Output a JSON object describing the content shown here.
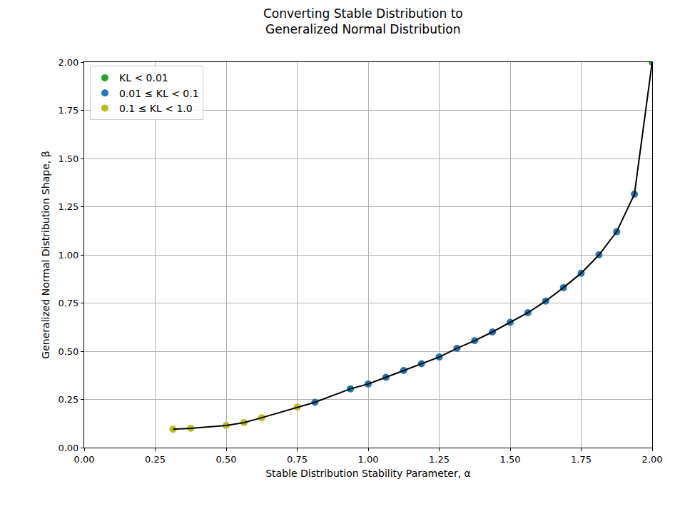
{
  "chart_data": {
    "type": "scatter",
    "title": "Converting Stable Distribution to\nGeneralized Normal Distribution",
    "x_label": "Stable Distribution Stability Parameter, α",
    "y_label": "Generalized Normal Distribution Shape, β",
    "xlim": [
      0,
      2
    ],
    "ylim": [
      0,
      2
    ],
    "xticks": [
      {
        "value": 0,
        "label": "0.00"
      },
      {
        "value": 0.25,
        "label": "0.25"
      },
      {
        "value": 0.5,
        "label": "0.50"
      },
      {
        "value": 0.75,
        "label": "0.75"
      },
      {
        "value": 1,
        "label": "1.00"
      },
      {
        "value": 1.25,
        "label": "1.25"
      },
      {
        "value": 1.5,
        "label": "1.50"
      },
      {
        "value": 1.75,
        "label": "1.75"
      },
      {
        "value": 2,
        "label": "2.00"
      }
    ],
    "yticks": [
      {
        "value": 0,
        "label": "0.00"
      },
      {
        "value": 0.25,
        "label": "0.25"
      },
      {
        "value": 0.5,
        "label": "0.50"
      },
      {
        "value": 0.75,
        "label": "0.75"
      },
      {
        "value": 1,
        "label": "1.00"
      },
      {
        "value": 1.25,
        "label": "1.25"
      },
      {
        "value": 1.5,
        "label": "1.50"
      },
      {
        "value": 1.75,
        "label": "1.75"
      },
      {
        "value": 2,
        "label": "2.00"
      }
    ],
    "grid": true,
    "legend": "upper left",
    "series": [
      {
        "name": "KL < 0.01",
        "color": "#2ca02c",
        "marker": "circle",
        "x": [
          2.0
        ],
        "values": [
          2.0
        ]
      },
      {
        "name": "0.01 ≤ KL < 0.1",
        "color": "#1f77b4",
        "marker": "circle",
        "x": [
          0.8125,
          0.9375,
          1.0,
          1.0625,
          1.125,
          1.1875,
          1.25,
          1.3125,
          1.375,
          1.4375,
          1.5,
          1.5625,
          1.625,
          1.6875,
          1.75,
          1.8125,
          1.875,
          1.9375
        ],
        "values": [
          0.235,
          0.305,
          0.33,
          0.365,
          0.4,
          0.435,
          0.47,
          0.515,
          0.555,
          0.6,
          0.65,
          0.7,
          0.76,
          0.83,
          0.905,
          1.0,
          1.12,
          1.315
        ]
      },
      {
        "name": "0.1 ≤ KL < 1.0",
        "color": "#bcbd22",
        "marker": "circle",
        "x": [
          0.3125,
          0.375,
          0.5,
          0.5625,
          0.625,
          0.75
        ],
        "values": [
          0.095,
          0.1,
          0.115,
          0.13,
          0.155,
          0.21
        ]
      },
      {
        "type": "line",
        "color": "#000000",
        "line_style": "solid",
        "x": [
          0.3125,
          0.375,
          0.5,
          0.5625,
          0.625,
          0.75,
          0.8125,
          0.9375,
          1.0,
          1.0625,
          1.125,
          1.1875,
          1.25,
          1.3125,
          1.375,
          1.4375,
          1.5,
          1.5625,
          1.625,
          1.6875,
          1.75,
          1.8125,
          1.875,
          1.9375,
          2.0
        ],
        "values": [
          0.095,
          0.1,
          0.115,
          0.13,
          0.155,
          0.21,
          0.235,
          0.305,
          0.33,
          0.365,
          0.4,
          0.435,
          0.47,
          0.515,
          0.555,
          0.6,
          0.65,
          0.7,
          0.76,
          0.83,
          0.905,
          1.0,
          1.12,
          1.315,
          2.0
        ]
      }
    ]
  }
}
